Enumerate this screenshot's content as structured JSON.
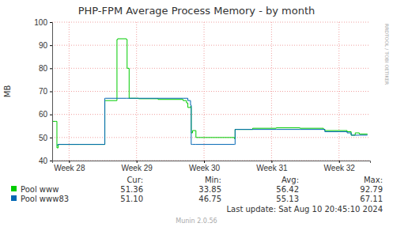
{
  "chart_data": {
    "type": "line",
    "title": "PHP-FPM Average Process Memory - by month",
    "y_label": "MB",
    "x": [
      27.75,
      27.8,
      27.82,
      27.84,
      28.15,
      28.53,
      28.54,
      28.71,
      28.72,
      28.85,
      28.86,
      28.89,
      29.03,
      29.32,
      29.69,
      29.74,
      29.76,
      29.8,
      29.81,
      29.83,
      29.88,
      30.14,
      30.45,
      30.46,
      30.72,
      31.07,
      31.42,
      31.77,
      31.79,
      32.12,
      32.18,
      32.24,
      32.3,
      32.42
    ],
    "xlim": [
      27.75,
      32.46
    ],
    "xticks": [
      {
        "value": 28,
        "label": "Week 28"
      },
      {
        "value": 29,
        "label": "Week 29"
      },
      {
        "value": 30,
        "label": "Week 30"
      },
      {
        "value": 31,
        "label": "Week 31"
      },
      {
        "value": 32,
        "label": "Week 32"
      }
    ],
    "ylim": [
      40,
      100
    ],
    "yticks": [
      40,
      50,
      60,
      70,
      80,
      90,
      100
    ],
    "grid": true,
    "line_style": "step",
    "legend": "bottom",
    "legend_columns": [
      "Cur:",
      "Min:",
      "Avg:",
      "Max:"
    ],
    "series": [
      {
        "name": "Pool www",
        "color": "#00cc00",
        "values": [
          57,
          57,
          45.5,
          47,
          47,
          66,
          66,
          92.5,
          92.79,
          92.5,
          80,
          67,
          66.8,
          66.5,
          66,
          65,
          63,
          63.5,
          52,
          53,
          50,
          50,
          49.5,
          53.5,
          54,
          54.2,
          54,
          53.5,
          53,
          52.5,
          51,
          52,
          51.5,
          51.36
        ],
        "stats": [
          51.36,
          33.85,
          56.42,
          92.79
        ]
      },
      {
        "name": "Pool www83",
        "color": "#0066b3",
        "values": [
          null,
          null,
          46.75,
          47,
          47,
          67,
          67,
          67,
          67,
          67,
          67,
          67,
          67,
          67,
          67,
          67,
          66,
          64,
          47,
          47,
          47,
          47,
          47,
          53.5,
          53.5,
          53.5,
          53.5,
          53.5,
          52.5,
          52,
          51,
          51,
          51,
          51.1
        ],
        "stats": [
          51.1,
          46.75,
          55.13,
          67.11
        ]
      }
    ],
    "last_update": "Last update: Sat Aug 10 20:45:10 2024",
    "credit": "Munin 2.0.56",
    "watermark": "RRDTOOL / TOBI OETIKER"
  }
}
